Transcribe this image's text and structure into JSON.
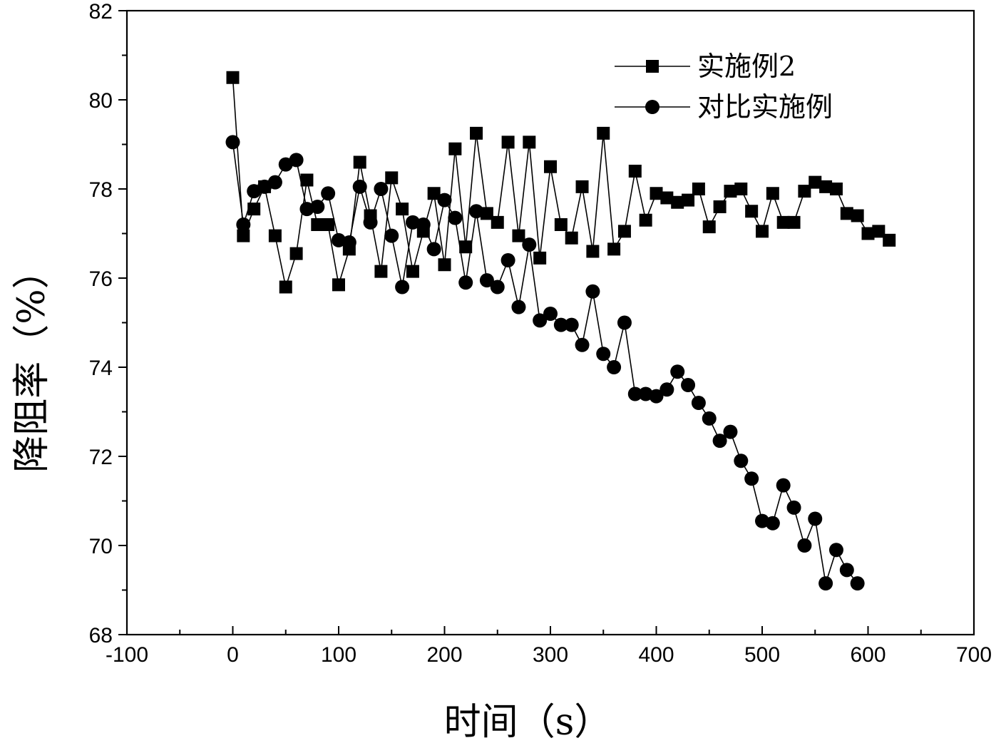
{
  "chart_data": {
    "type": "line",
    "title": "",
    "xlabel": "时间（s）",
    "ylabel": "降阻率（%）",
    "xlim": [
      -100,
      700
    ],
    "ylim": [
      68,
      82
    ],
    "xticks": [
      -100,
      0,
      100,
      200,
      300,
      400,
      500,
      600,
      700
    ],
    "yticks": [
      68,
      70,
      72,
      74,
      76,
      78,
      80,
      82
    ],
    "legend_position": "top-right",
    "series": [
      {
        "name": "实施例2",
        "marker": "square",
        "x": [
          0,
          10,
          20,
          30,
          40,
          50,
          60,
          70,
          80,
          90,
          100,
          110,
          120,
          130,
          140,
          150,
          160,
          170,
          180,
          190,
          200,
          210,
          220,
          230,
          240,
          250,
          260,
          270,
          280,
          290,
          300,
          310,
          320,
          330,
          340,
          350,
          360,
          370,
          380,
          390,
          400,
          410,
          420,
          430,
          440,
          450,
          460,
          470,
          480,
          490,
          500,
          510,
          520,
          530,
          540,
          550,
          560,
          570,
          580,
          590,
          600,
          610,
          620
        ],
        "y": [
          80.5,
          76.95,
          77.55,
          78.05,
          76.95,
          75.8,
          76.55,
          78.2,
          77.2,
          77.2,
          75.85,
          76.65,
          78.6,
          77.4,
          76.15,
          78.25,
          77.55,
          76.15,
          77.05,
          77.9,
          76.3,
          78.9,
          76.7,
          79.25,
          77.45,
          77.25,
          79.05,
          76.95,
          79.05,
          76.45,
          78.5,
          77.2,
          76.9,
          78.05,
          76.6,
          79.25,
          76.65,
          77.05,
          78.4,
          77.3,
          77.9,
          77.8,
          77.7,
          77.75,
          78.0,
          77.15,
          77.6,
          77.95,
          78.0,
          77.5,
          77.05,
          77.9,
          77.25,
          77.25,
          77.95,
          78.15,
          78.05,
          78.0,
          77.45,
          77.4,
          77.0,
          77.05,
          76.85
        ]
      },
      {
        "name": "对比实施例",
        "marker": "circle",
        "x": [
          0,
          10,
          20,
          30,
          40,
          50,
          60,
          70,
          80,
          90,
          100,
          110,
          120,
          130,
          140,
          150,
          160,
          170,
          180,
          190,
          200,
          210,
          220,
          230,
          240,
          250,
          260,
          270,
          280,
          290,
          300,
          310,
          320,
          330,
          340,
          350,
          360,
          370,
          380,
          390,
          400,
          410,
          420,
          430,
          440,
          450,
          460,
          470,
          480,
          490,
          500,
          510,
          520,
          530,
          540,
          550,
          560,
          570,
          580,
          590
        ],
        "y": [
          79.05,
          77.2,
          77.95,
          78.05,
          78.15,
          78.55,
          78.65,
          77.55,
          77.6,
          77.9,
          76.85,
          76.8,
          78.05,
          77.25,
          78.0,
          76.95,
          75.8,
          77.25,
          77.2,
          76.65,
          77.75,
          77.35,
          75.9,
          77.5,
          75.95,
          75.8,
          76.4,
          75.35,
          76.75,
          75.05,
          75.2,
          74.95,
          74.95,
          74.5,
          75.7,
          74.3,
          74.0,
          75.0,
          73.4,
          73.4,
          73.35,
          73.5,
          73.9,
          73.6,
          73.2,
          72.85,
          72.35,
          72.55,
          71.9,
          71.5,
          70.55,
          70.5,
          71.35,
          70.85,
          70.0,
          70.6,
          69.15,
          69.9,
          69.45,
          69.15
        ]
      }
    ]
  }
}
